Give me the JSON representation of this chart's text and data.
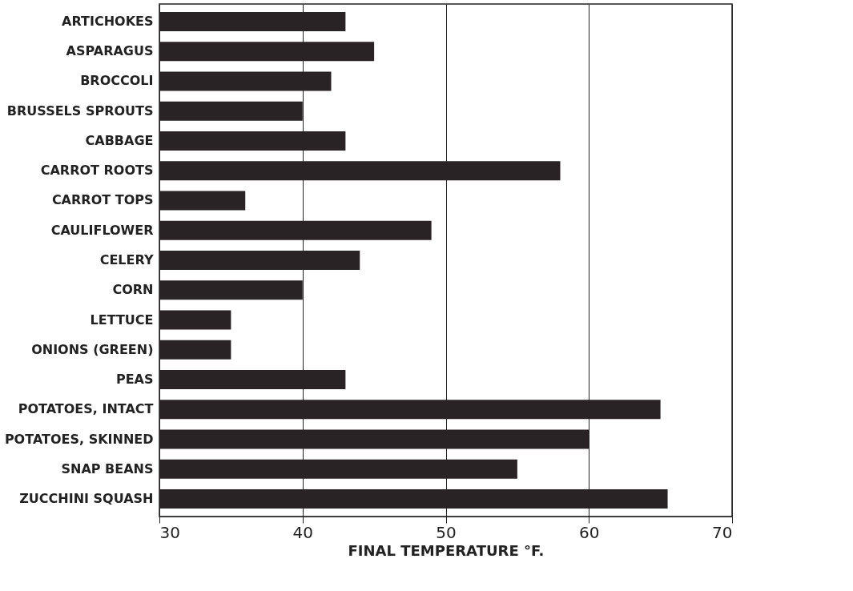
{
  "chart_data": {
    "type": "bar",
    "orientation": "horizontal",
    "xlabel": "FINAL TEMPERATURE °F.",
    "categories": [
      "ARTICHOKES",
      "ASPARAGUS",
      "BROCCOLI",
      "BRUSSELS SPROUTS",
      "CABBAGE",
      "CARROT ROOTS",
      "CARROT TOPS",
      "CAULIFLOWER",
      "CELERY",
      "CORN",
      "LETTUCE",
      "ONIONS (GREEN)",
      "PEAS",
      "POTATOES, INTACT",
      "POTATOES, SKINNED",
      "SNAP BEANS",
      "ZUCCHINI SQUASH"
    ],
    "values": [
      43,
      45,
      42,
      40,
      43,
      58,
      36,
      49,
      44,
      40,
      35,
      35,
      43,
      65,
      60,
      55,
      65.5
    ],
    "color": "#2a2326",
    "xlim": [
      30,
      70
    ],
    "xticks": [
      30,
      40,
      50,
      60,
      70
    ],
    "grid": "x"
  }
}
